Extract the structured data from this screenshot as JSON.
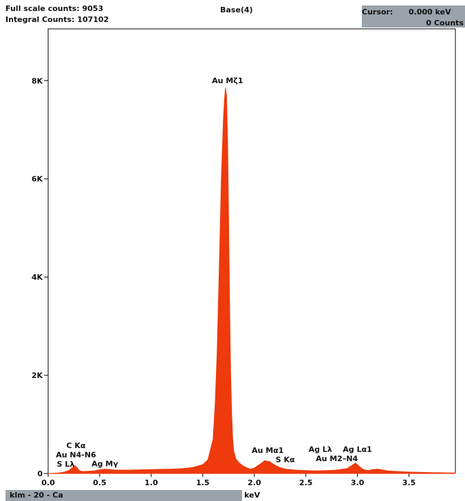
{
  "header": {
    "full_scale": "Full scale counts: 9053",
    "integral": "Integral Counts: 107102",
    "title": "Base(4)",
    "cursor_label": "Cursor:",
    "cursor_value": "0.000 keV",
    "cursor_counts": "0 Counts"
  },
  "footer": {
    "label": "klm - 20 - Ca",
    "x_unit": "keV"
  },
  "colors": {
    "spectrum": "#ee3a0c",
    "status_bar": "#9aa2aa"
  },
  "chart_data": {
    "type": "area",
    "title": "Base(4)",
    "xlabel": "keV",
    "ylabel": "",
    "xlim": [
      0,
      3.95
    ],
    "ylim": [
      0,
      9053
    ],
    "grid": false,
    "x_ticks": [
      {
        "value": 0.0,
        "label": "0.0"
      },
      {
        "value": 0.5,
        "label": "0.5"
      },
      {
        "value": 1.0,
        "label": "1.0"
      },
      {
        "value": 1.5,
        "label": "1.5"
      },
      {
        "value": 2.0,
        "label": "2.0"
      },
      {
        "value": 2.5,
        "label": "2.5"
      },
      {
        "value": 3.0,
        "label": "3.0"
      },
      {
        "value": 3.5,
        "label": "3.5"
      }
    ],
    "y_ticks": [
      {
        "value": 0,
        "label": "0"
      },
      {
        "value": 2000,
        "label": "2K"
      },
      {
        "value": 4000,
        "label": "4K"
      },
      {
        "value": 6000,
        "label": "6K"
      },
      {
        "value": 8000,
        "label": "8K"
      }
    ],
    "x": [
      0.0,
      0.1,
      0.15,
      0.2,
      0.23,
      0.26,
      0.28,
      0.3,
      0.33,
      0.38,
      0.45,
      0.5,
      0.55,
      0.6,
      0.65,
      0.7,
      0.8,
      0.9,
      1.0,
      1.1,
      1.2,
      1.3,
      1.4,
      1.5,
      1.55,
      1.6,
      1.62,
      1.64,
      1.66,
      1.68,
      1.7,
      1.71,
      1.72,
      1.73,
      1.74,
      1.75,
      1.76,
      1.77,
      1.78,
      1.79,
      1.8,
      1.82,
      1.85,
      1.88,
      1.92,
      1.96,
      2.0,
      2.05,
      2.1,
      2.15,
      2.2,
      2.25,
      2.3,
      2.4,
      2.5,
      2.6,
      2.7,
      2.8,
      2.9,
      2.95,
      2.98,
      3.0,
      3.03,
      3.06,
      3.1,
      3.15,
      3.2,
      3.25,
      3.3,
      3.4,
      3.5,
      3.6,
      3.7,
      3.8,
      3.95
    ],
    "series": [
      {
        "values": [
          0,
          10,
          25,
          60,
          110,
          160,
          120,
          60,
          40,
          45,
          55,
          75,
          90,
          80,
          70,
          70,
          70,
          75,
          80,
          85,
          90,
          100,
          120,
          180,
          280,
          700,
          1400,
          2500,
          4200,
          6000,
          7200,
          7600,
          7850,
          7700,
          6800,
          5200,
          3400,
          2000,
          1200,
          700,
          450,
          300,
          220,
          170,
          120,
          90,
          110,
          180,
          260,
          240,
          170,
          120,
          90,
          70,
          60,
          55,
          60,
          70,
          100,
          170,
          210,
          180,
          120,
          80,
          60,
          80,
          90,
          70,
          50,
          40,
          30,
          25,
          20,
          15,
          10
        ]
      }
    ],
    "annotations": [
      {
        "text": "Au Mζ1",
        "x": 1.74,
        "y": 7950
      },
      {
        "text": "C Kα",
        "x": 0.27,
        "y": 520
      },
      {
        "text": "Au N4-N6",
        "x": 0.27,
        "y": 330
      },
      {
        "text": "S Lλ",
        "x": 0.17,
        "y": 140
      },
      {
        "text": "Ag Mγ",
        "x": 0.55,
        "y": 150
      },
      {
        "text": "Au Mα1",
        "x": 2.13,
        "y": 420
      },
      {
        "text": "S Kα",
        "x": 2.3,
        "y": 230
      },
      {
        "text": "Ag Lλ",
        "x": 2.64,
        "y": 440
      },
      {
        "text": "Ag Lα1",
        "x": 3.0,
        "y": 440
      },
      {
        "text": "Au M2–N4",
        "x": 2.8,
        "y": 250
      }
    ]
  }
}
